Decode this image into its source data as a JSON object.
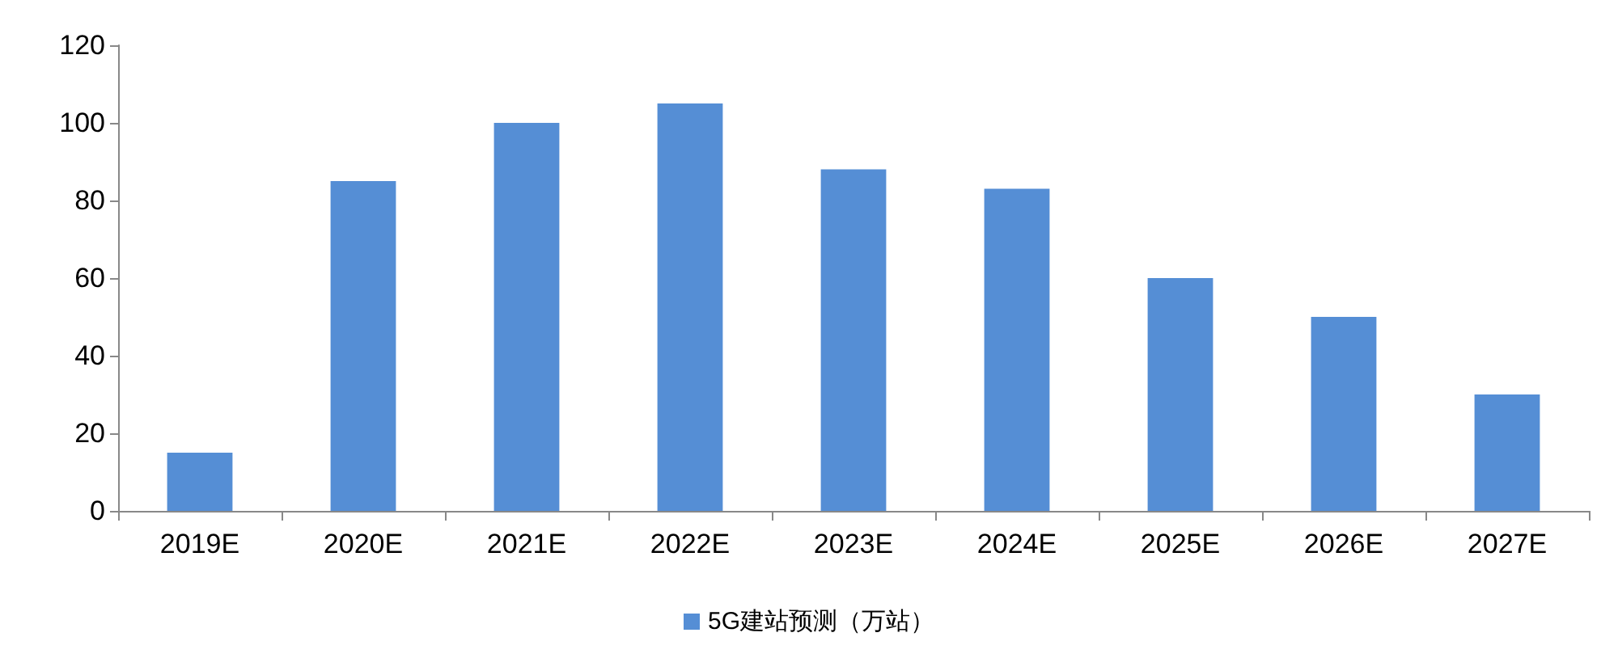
{
  "chart_data": {
    "type": "bar",
    "categories": [
      "2019E",
      "2020E",
      "2021E",
      "2022E",
      "2023E",
      "2024E",
      "2025E",
      "2026E",
      "2027E"
    ],
    "series": [
      {
        "name": "5G建站预测（万站）",
        "color": "#558ed5",
        "values": [
          15,
          85,
          100,
          105,
          88,
          83,
          60,
          50,
          30
        ]
      }
    ],
    "ylim": [
      0,
      120
    ],
    "yticks": [
      0,
      20,
      40,
      60,
      80,
      100,
      120
    ],
    "grid": false,
    "legend": "bottom"
  }
}
